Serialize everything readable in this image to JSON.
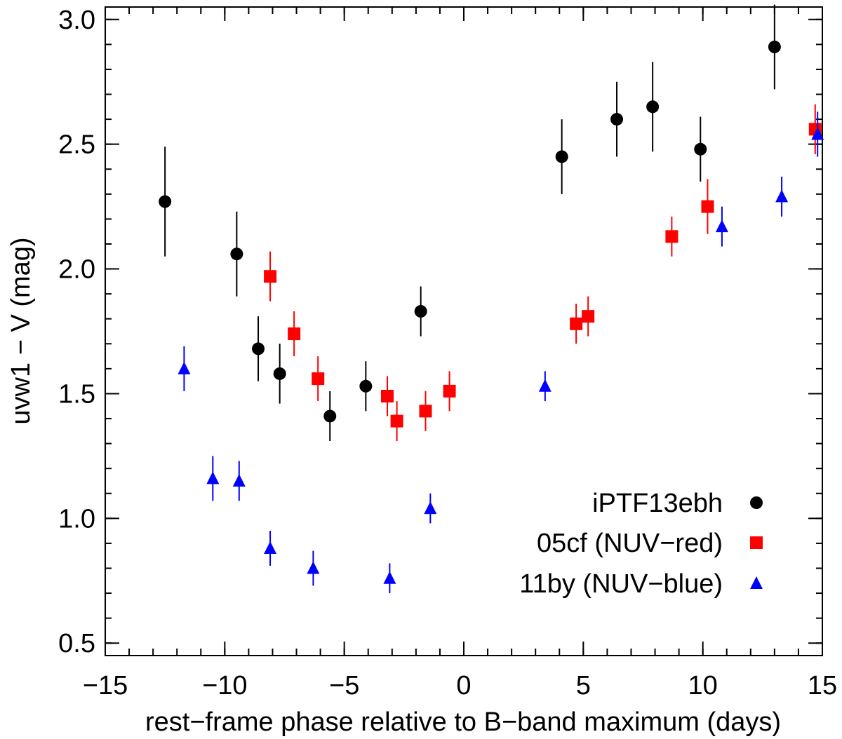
{
  "chart_data": {
    "type": "scatter",
    "title": "",
    "xlabel": "rest−frame phase relative to B−band maximum (days)",
    "ylabel": "uvw1 − V (mag)",
    "xlim": [
      -15,
      15
    ],
    "ylim": [
      0.45,
      3.05
    ],
    "x_major_ticks": [
      -15,
      -10,
      -5,
      0,
      5,
      10,
      15
    ],
    "x_tick_labels": [
      "−15",
      "−10",
      "−5",
      "0",
      "5",
      "10",
      "15"
    ],
    "x_minor_step": 1,
    "y_major_ticks": [
      0.5,
      1.0,
      1.5,
      2.0,
      2.5,
      3.0
    ],
    "y_tick_labels": [
      "0.5",
      "1.0",
      "1.5",
      "2.0",
      "2.5",
      "3.0"
    ],
    "y_minor_step": 0.1,
    "legend_position": "bottom-right",
    "series": [
      {
        "name": "iPTF13ebh",
        "marker": "circle",
        "color": "#000000",
        "points": [
          {
            "x": -12.5,
            "y": 2.27,
            "err": 0.22
          },
          {
            "x": -9.5,
            "y": 2.06,
            "err": 0.17
          },
          {
            "x": -8.6,
            "y": 1.68,
            "err": 0.13
          },
          {
            "x": -7.7,
            "y": 1.58,
            "err": 0.12
          },
          {
            "x": -5.6,
            "y": 1.41,
            "err": 0.1
          },
          {
            "x": -4.1,
            "y": 1.53,
            "err": 0.1
          },
          {
            "x": -1.8,
            "y": 1.83,
            "err": 0.1
          },
          {
            "x": 4.1,
            "y": 2.45,
            "err": 0.15
          },
          {
            "x": 6.4,
            "y": 2.6,
            "err": 0.15
          },
          {
            "x": 7.9,
            "y": 2.65,
            "err": 0.18
          },
          {
            "x": 9.9,
            "y": 2.48,
            "err": 0.13
          },
          {
            "x": 13.0,
            "y": 2.89,
            "err": 0.17
          }
        ]
      },
      {
        "name": "05cf (NUV−red)",
        "marker": "square",
        "color": "#ff0000",
        "points": [
          {
            "x": -8.1,
            "y": 1.97,
            "err": 0.1
          },
          {
            "x": -7.1,
            "y": 1.74,
            "err": 0.09
          },
          {
            "x": -6.1,
            "y": 1.56,
            "err": 0.09
          },
          {
            "x": -3.2,
            "y": 1.49,
            "err": 0.08
          },
          {
            "x": -2.8,
            "y": 1.39,
            "err": 0.08
          },
          {
            "x": -1.6,
            "y": 1.43,
            "err": 0.08
          },
          {
            "x": -0.6,
            "y": 1.51,
            "err": 0.08
          },
          {
            "x": 4.7,
            "y": 1.78,
            "err": 0.08
          },
          {
            "x": 5.2,
            "y": 1.81,
            "err": 0.08
          },
          {
            "x": 8.7,
            "y": 2.13,
            "err": 0.08
          },
          {
            "x": 10.2,
            "y": 2.25,
            "err": 0.11
          },
          {
            "x": 14.7,
            "y": 2.56,
            "err": 0.1
          }
        ]
      },
      {
        "name": "11by (NUV−blue)",
        "marker": "triangle",
        "color": "#0000ff",
        "points": [
          {
            "x": -11.7,
            "y": 1.6,
            "err": 0.09
          },
          {
            "x": -10.5,
            "y": 1.16,
            "err": 0.09
          },
          {
            "x": -9.4,
            "y": 1.15,
            "err": 0.08
          },
          {
            "x": -8.1,
            "y": 0.88,
            "err": 0.07
          },
          {
            "x": -6.3,
            "y": 0.8,
            "err": 0.07
          },
          {
            "x": -3.1,
            "y": 0.76,
            "err": 0.06
          },
          {
            "x": -1.4,
            "y": 1.04,
            "err": 0.06
          },
          {
            "x": 3.4,
            "y": 1.53,
            "err": 0.06
          },
          {
            "x": 10.8,
            "y": 2.17,
            "err": 0.08
          },
          {
            "x": 13.3,
            "y": 2.29,
            "err": 0.08
          },
          {
            "x": 14.8,
            "y": 2.54,
            "err": 0.09
          }
        ]
      }
    ]
  }
}
